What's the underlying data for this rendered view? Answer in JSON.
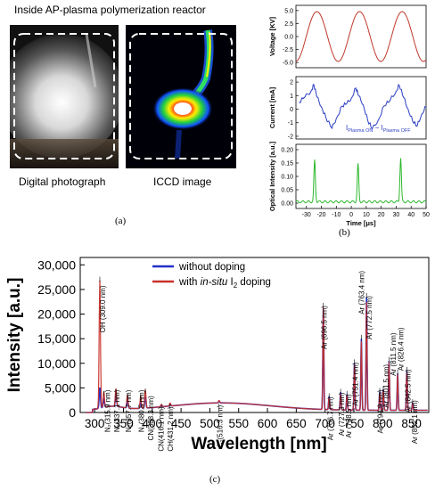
{
  "panel_a": {
    "title": "Inside AP-plasma polymerization reactor",
    "caption_left": "Digital photograph",
    "caption_right": "ICCD image",
    "label": "(a)"
  },
  "panel_b": {
    "label": "(b)",
    "annotation": "I",
    "annotation_sub1": "Plasma ON",
    "annotation_mid": " − I",
    "annotation_sub2": "Plasma OFF"
  },
  "panel_c": {
    "label": "(c)"
  },
  "chart_data": [
    {
      "type": "line",
      "panel": "b-top",
      "ylabel": "Voltage [KV]",
      "xlim": [
        -37,
        50
      ],
      "ylim": [
        -6,
        6
      ],
      "yticks": [
        "5.0",
        "2.5",
        "0.0",
        "-2.5",
        "-5.0"
      ],
      "ytick_values": [
        5.0,
        2.5,
        0.0,
        -2.5,
        -5.0
      ],
      "color": "#c0392b",
      "series": [
        {
          "amplitude": 4.8,
          "period_us": 28.5,
          "peak_at_us": -23
        }
      ]
    },
    {
      "type": "line",
      "panel": "b-mid",
      "ylabel": "Current [mA]",
      "xlim": [
        -37,
        50
      ],
      "ylim": [
        -2.2,
        2.4
      ],
      "yticks": [
        "2",
        "1",
        "0",
        "-1",
        "-2"
      ],
      "ytick_values": [
        2,
        1,
        0,
        -1,
        -2
      ],
      "color": "#2c3fc2",
      "series": [
        {
          "x": [
            -35,
            -31,
            -27,
            -25,
            -23,
            -20,
            -17,
            -13,
            -10,
            -6,
            -3,
            0,
            3,
            5,
            8,
            11,
            14,
            18,
            22,
            26,
            30,
            32,
            35,
            38,
            41,
            44,
            47,
            50
          ],
          "y": [
            0.5,
            0.8,
            1.2,
            1.8,
            1.0,
            0.3,
            -0.6,
            -1.5,
            -0.8,
            0.2,
            0.5,
            0.9,
            1.6,
            0.9,
            0.2,
            -0.9,
            -1.4,
            -0.7,
            0.3,
            0.6,
            1.2,
            1.7,
            0.9,
            0.1,
            -0.8,
            -1.3,
            -0.5,
            0.1
          ]
        }
      ]
    },
    {
      "type": "line",
      "panel": "b-bottom",
      "ylabel": "Optical Intensity [a.u.]",
      "xlabel": "Time [μs]",
      "xlim": [
        -37,
        50
      ],
      "ylim": [
        -0.02,
        0.22
      ],
      "yticks": [
        "0.20",
        "0.15",
        "0.10",
        "0.05",
        "0.00"
      ],
      "ytick_values": [
        0.2,
        0.15,
        0.1,
        0.05,
        0.0
      ],
      "xticks": [
        "-30",
        "-20",
        "-10",
        "0",
        "10",
        "20",
        "30",
        "40",
        "50"
      ],
      "xtick_values": [
        -30,
        -20,
        -10,
        0,
        10,
        20,
        30,
        40,
        50
      ],
      "color": "#2eb82e",
      "series": [
        {
          "peaks": [
            {
              "x": -24.5,
              "y": 0.155
            },
            {
              "x": 4.5,
              "y": 0.14
            },
            {
              "x": 33,
              "y": 0.165
            }
          ],
          "baseline": 0.005
        }
      ]
    },
    {
      "type": "line",
      "panel": "c",
      "xlabel": "Wavelength [nm]",
      "ylabel": "Intensity [a.u.]",
      "xlim": [
        275,
        880
      ],
      "ylim": [
        0,
        31500
      ],
      "xticks": [
        "300",
        "350",
        "400",
        "450",
        "500",
        "550",
        "600",
        "650",
        "700",
        "750",
        "800",
        "850"
      ],
      "xtick_values": [
        300,
        350,
        400,
        450,
        500,
        550,
        600,
        650,
        700,
        750,
        800,
        850
      ],
      "yticks": [
        "0",
        "5,000",
        "10,000",
        "15,000",
        "20,000",
        "25,000",
        "30,000"
      ],
      "ytick_values": [
        0,
        5000,
        10000,
        15000,
        20000,
        25000,
        30000
      ],
      "legend": [
        {
          "name": "without doping",
          "color": "#2230c8"
        },
        {
          "name_pre": "with ",
          "name_italic": "in-situ",
          "name_post": " I",
          "name_sub": "2",
          "name_end": " doping",
          "color": "#c8302a"
        }
      ],
      "series": [
        {
          "name": "without doping",
          "color": "#2230c8",
          "peaks": [
            {
              "x": 309,
              "y": 4200
            },
            {
              "x": 316,
              "y": 1700
            },
            {
              "x": 337,
              "y": 2600
            },
            {
              "x": 357,
              "y": 1600
            },
            {
              "x": 380,
              "y": 1100
            },
            {
              "x": 388,
              "y": 2400
            },
            {
              "x": 416,
              "y": 300
            },
            {
              "x": 431,
              "y": 350
            },
            {
              "x": 516,
              "y": 350
            },
            {
              "x": 697,
              "y": 20500
            },
            {
              "x": 707,
              "y": 2700
            },
            {
              "x": 727,
              "y": 3600
            },
            {
              "x": 738,
              "y": 3200
            },
            {
              "x": 751,
              "y": 9500
            },
            {
              "x": 763,
              "y": 14500
            },
            {
              "x": 772,
              "y": 23000
            },
            {
              "x": 795,
              "y": 3800
            },
            {
              "x": 801,
              "y": 4200
            },
            {
              "x": 811,
              "y": 10000
            },
            {
              "x": 826,
              "y": 7500
            },
            {
              "x": 842,
              "y": 8000
            },
            {
              "x": 852,
              "y": 1500
            }
          ]
        },
        {
          "name": "with in-situ I2 doping",
          "color": "#c8302a",
          "peaks": [
            {
              "x": 309,
              "y": 26000
            },
            {
              "x": 316,
              "y": 3200
            },
            {
              "x": 337,
              "y": 3600
            },
            {
              "x": 357,
              "y": 2700
            },
            {
              "x": 380,
              "y": 2400
            },
            {
              "x": 388,
              "y": 3700
            },
            {
              "x": 416,
              "y": 500
            },
            {
              "x": 431,
              "y": 600
            },
            {
              "x": 516,
              "y": 500
            },
            {
              "x": 697,
              "y": 20800
            },
            {
              "x": 707,
              "y": 2500
            },
            {
              "x": 727,
              "y": 3300
            },
            {
              "x": 738,
              "y": 3000
            },
            {
              "x": 751,
              "y": 9200
            },
            {
              "x": 763,
              "y": 14000
            },
            {
              "x": 772,
              "y": 22000
            },
            {
              "x": 795,
              "y": 3500
            },
            {
              "x": 801,
              "y": 4000
            },
            {
              "x": 811,
              "y": 9800
            },
            {
              "x": 826,
              "y": 7300
            },
            {
              "x": 842,
              "y": 7800
            },
            {
              "x": 852,
              "y": 1400
            }
          ]
        }
      ],
      "annotations": [
        {
          "text": "OH (309.0 nm)",
          "x": 309,
          "y": 26500,
          "label_wl": 318,
          "label_y": 25800
        },
        {
          "text": "N₂(315.9 nm)",
          "x": 316,
          "y": 3300,
          "label_wl": 327,
          "label_y": 4600
        },
        {
          "text": "N₂(337.1 nm)",
          "x": 337,
          "y": 3700,
          "label_wl": 343,
          "label_y": 4600
        },
        {
          "text": "N₂(357.7 nm)",
          "x": 357,
          "y": 2800,
          "label_wl": 363,
          "label_y": 4600
        },
        {
          "text": "N₂(380.5 nm)",
          "x": 380,
          "y": 2500,
          "label_wl": 386,
          "label_y": 4600
        },
        {
          "text": "CN(388.3 nm)",
          "x": 388,
          "y": 3800,
          "label_wl": 402,
          "label_y": 3400
        },
        {
          "text": "CN(416.1 nm)",
          "x": 416,
          "y": 600,
          "label_wl": 420,
          "label_y": 1200
        },
        {
          "text": "CH(431.2 nm)",
          "x": 431,
          "y": 700,
          "label_wl": 436,
          "label_y": 1200
        },
        {
          "text": "C₂(516.3 nm)",
          "x": 516,
          "y": 700,
          "label_wl": 522,
          "label_y": 1500
        },
        {
          "text": "Ar (696.5 nm)",
          "x": 697,
          "y": 21200,
          "label_wl": 703,
          "label_y": 21700
        },
        {
          "text": "Ar (706.7 nm)",
          "x": 707,
          "y": 2800,
          "label_wl": 714,
          "label_y": 3200
        },
        {
          "text": "Ar (727.3 nm)",
          "x": 727,
          "y": 3700,
          "label_wl": 733,
          "label_y": 4100
        },
        {
          "text": "Ar (738.5 nm)",
          "x": 738,
          "y": 3300,
          "label_wl": 745,
          "label_y": 3700
        },
        {
          "text": "Ar (751.4 nm)",
          "x": 751,
          "y": 9700,
          "label_wl": 757,
          "label_y": 10200
        },
        {
          "text": "Ar (763.4 nm)",
          "x": 763,
          "y": 14700,
          "label_wl": 768,
          "label_y": 28800
        },
        {
          "text": "Ar (772.5 nm)",
          "x": 772,
          "y": 23200,
          "label_wl": 781,
          "label_y": 23700
        },
        {
          "text": "Ar (794.9 nm)",
          "x": 795,
          "y": 3900,
          "label_wl": 800,
          "label_y": 4600
        },
        {
          "text": "Ar (801.5 nm)",
          "x": 801,
          "y": 4300,
          "label_wl": 810,
          "label_y": 9800
        },
        {
          "text": "Ar (811.5 nm)",
          "x": 811,
          "y": 10200,
          "label_wl": 823,
          "label_y": 16200
        },
        {
          "text": "Ar (826.4 nm)",
          "x": 826,
          "y": 7700,
          "label_wl": 836,
          "label_y": 17300
        },
        {
          "text": "Ar (842.5 nm)",
          "x": 842,
          "y": 8200,
          "label_wl": 848,
          "label_y": 8800
        },
        {
          "text": "Ar (852.1 nm)",
          "x": 852,
          "y": 1600,
          "label_wl": 860,
          "label_y": 2500
        }
      ]
    }
  ]
}
